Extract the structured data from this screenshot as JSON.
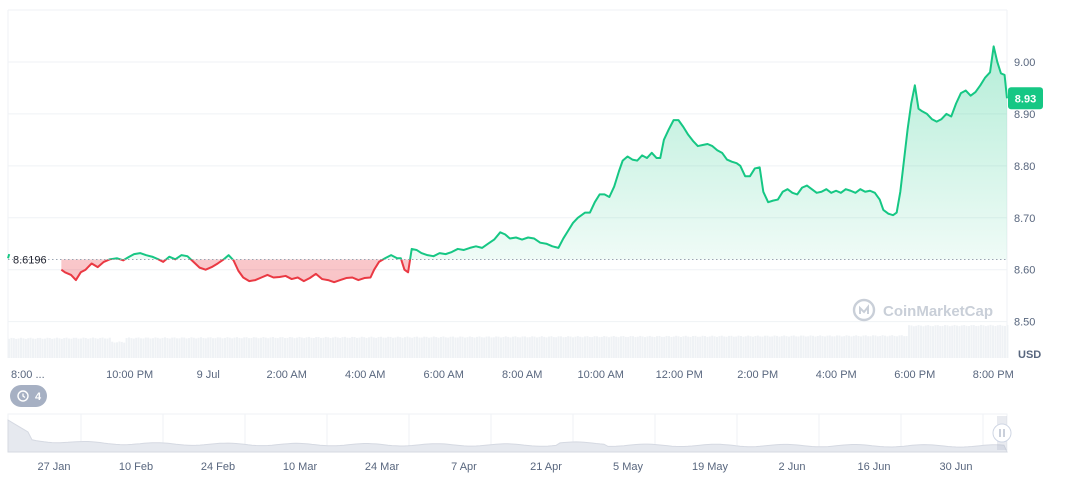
{
  "chart_data": {
    "type": "line",
    "currency": "USD",
    "baseline": 8.6196,
    "current_price_label": "8.93",
    "ylim": [
      8.43,
      9.1
    ],
    "y_ticks": [
      8.5,
      8.6,
      8.7,
      8.8,
      8.9,
      9.0
    ],
    "y_tick_labels": [
      "8.50",
      "8.60",
      "8.70",
      "8.80",
      "8.90",
      "9.00"
    ],
    "x_tick_labels": [
      "8:00 ...",
      "10:00 PM",
      "9 Jul",
      "2:00 AM",
      "4:00 AM",
      "6:00 AM",
      "8:00 AM",
      "10:00 AM",
      "12:00 PM",
      "2:00 PM",
      "4:00 PM",
      "6:00 PM",
      "8:00 PM"
    ],
    "x_hours": [
      0,
      2,
      4,
      6,
      8,
      10,
      12,
      14,
      16,
      18,
      20,
      22,
      24
    ],
    "grid": true,
    "colors": {
      "up": "#16c784",
      "down": "#ea3943",
      "grid": "#eff2f5",
      "text": "#58667e",
      "volume": "#eff2f5"
    },
    "series": [
      {
        "values": [
          [
            -1.1,
            8.622
          ],
          [
            -1.05,
            8.63
          ],
          [
            1.1,
            8.6
          ],
          [
            1.25,
            8.595
          ],
          [
            1.5,
            8.59
          ],
          [
            1.7,
            8.58
          ],
          [
            1.9,
            8.595
          ],
          [
            2.1,
            8.6
          ],
          [
            2.35,
            8.612
          ],
          [
            2.6,
            8.605
          ],
          [
            2.85,
            8.615
          ],
          [
            3.1,
            8.62
          ],
          [
            3.4,
            8.622
          ],
          [
            3.65,
            8.618
          ],
          [
            3.9,
            8.625
          ],
          [
            4.1,
            8.63
          ],
          [
            4.35,
            8.632
          ],
          [
            4.6,
            8.628
          ],
          [
            4.85,
            8.625
          ],
          [
            5.1,
            8.62
          ],
          [
            5.3,
            8.615
          ],
          [
            5.55,
            8.625
          ],
          [
            5.8,
            8.62
          ],
          [
            6.05,
            8.628
          ],
          [
            6.3,
            8.626
          ],
          [
            6.55,
            8.615
          ],
          [
            6.8,
            8.604
          ],
          [
            7.05,
            8.6
          ],
          [
            7.3,
            8.605
          ],
          [
            7.55,
            8.612
          ],
          [
            7.8,
            8.62
          ],
          [
            8.0,
            8.628
          ],
          [
            8.2,
            8.618
          ],
          [
            8.4,
            8.598
          ],
          [
            8.6,
            8.585
          ],
          [
            8.85,
            8.578
          ],
          [
            9.1,
            8.58
          ],
          [
            9.35,
            8.585
          ],
          [
            9.6,
            8.59
          ],
          [
            9.85,
            8.585
          ],
          [
            10.1,
            8.586
          ],
          [
            10.35,
            8.588
          ],
          [
            10.6,
            8.582
          ],
          [
            10.85,
            8.585
          ],
          [
            11.1,
            8.578
          ],
          [
            11.35,
            8.584
          ],
          [
            11.6,
            8.592
          ],
          [
            11.85,
            8.582
          ],
          [
            12.1,
            8.58
          ],
          [
            12.35,
            8.576
          ],
          [
            12.6,
            8.58
          ],
          [
            12.85,
            8.584
          ],
          [
            13.1,
            8.585
          ],
          [
            13.35,
            8.58
          ],
          [
            13.6,
            8.584
          ],
          [
            13.85,
            8.585
          ],
          [
            14.0,
            8.6
          ],
          [
            14.2,
            8.615
          ],
          [
            14.45,
            8.622
          ],
          [
            14.7,
            8.628
          ],
          [
            14.95,
            8.622
          ],
          [
            15.1,
            8.622
          ],
          [
            15.25,
            8.6
          ],
          [
            15.4,
            8.595
          ],
          [
            15.55,
            8.64
          ],
          [
            15.75,
            8.638
          ],
          [
            15.95,
            8.632
          ],
          [
            16.2,
            8.628
          ],
          [
            16.45,
            8.626
          ],
          [
            16.7,
            8.632
          ],
          [
            16.95,
            8.63
          ],
          [
            17.2,
            8.634
          ],
          [
            17.45,
            8.64
          ],
          [
            17.7,
            8.638
          ],
          [
            17.95,
            8.642
          ],
          [
            18.2,
            8.645
          ],
          [
            18.45,
            8.642
          ],
          [
            18.7,
            8.65
          ],
          [
            18.95,
            8.658
          ],
          [
            19.2,
            8.672
          ],
          [
            19.4,
            8.668
          ],
          [
            19.6,
            8.66
          ],
          [
            19.85,
            8.662
          ],
          [
            20.1,
            8.658
          ],
          [
            20.35,
            8.662
          ],
          [
            20.6,
            8.66
          ],
          [
            20.85,
            8.652
          ],
          [
            21.1,
            8.65
          ],
          [
            21.35,
            8.645
          ],
          [
            21.6,
            8.642
          ],
          [
            21.8,
            8.66
          ],
          [
            22.0,
            8.675
          ],
          [
            22.2,
            8.69
          ],
          [
            22.4,
            8.7
          ],
          [
            22.55,
            8.705
          ],
          [
            22.7,
            8.71
          ],
          [
            22.9,
            8.71
          ],
          [
            23.1,
            8.73
          ],
          [
            23.3,
            8.745
          ],
          [
            23.5,
            8.745
          ],
          [
            23.7,
            8.74
          ],
          [
            23.9,
            8.76
          ],
          [
            24.1,
            8.79
          ],
          [
            24.25,
            8.81
          ],
          [
            24.45,
            8.818
          ],
          [
            24.65,
            8.812
          ],
          [
            24.85,
            8.81
          ],
          [
            25.05,
            8.82
          ],
          [
            25.25,
            8.815
          ],
          [
            25.45,
            8.825
          ],
          [
            25.65,
            8.815
          ],
          [
            25.8,
            8.815
          ],
          [
            25.95,
            8.85
          ],
          [
            26.15,
            8.87
          ],
          [
            26.35,
            8.888
          ],
          [
            26.55,
            8.888
          ],
          [
            26.75,
            8.875
          ],
          [
            26.95,
            8.86
          ],
          [
            27.15,
            8.848
          ],
          [
            27.35,
            8.838
          ],
          [
            27.55,
            8.84
          ],
          [
            27.75,
            8.842
          ],
          [
            27.95,
            8.838
          ],
          [
            28.15,
            8.83
          ],
          [
            28.35,
            8.825
          ],
          [
            28.55,
            8.812
          ],
          [
            28.75,
            8.808
          ],
          [
            28.95,
            8.805
          ],
          [
            29.1,
            8.8
          ],
          [
            29.3,
            8.78
          ],
          [
            29.5,
            8.78
          ],
          [
            29.7,
            8.795
          ],
          [
            29.9,
            8.797
          ],
          [
            30.05,
            8.75
          ],
          [
            30.25,
            8.73
          ],
          [
            30.45,
            8.733
          ],
          [
            30.65,
            8.735
          ],
          [
            30.85,
            8.75
          ],
          [
            31.05,
            8.755
          ],
          [
            31.25,
            8.748
          ],
          [
            31.45,
            8.745
          ],
          [
            31.65,
            8.758
          ],
          [
            31.85,
            8.762
          ],
          [
            32.05,
            8.755
          ],
          [
            32.25,
            8.748
          ],
          [
            32.45,
            8.75
          ],
          [
            32.65,
            8.755
          ],
          [
            32.85,
            8.748
          ],
          [
            33.05,
            8.752
          ],
          [
            33.25,
            8.748
          ],
          [
            33.45,
            8.755
          ],
          [
            33.65,
            8.752
          ],
          [
            33.85,
            8.748
          ],
          [
            34.05,
            8.755
          ],
          [
            34.25,
            8.75
          ],
          [
            34.45,
            8.752
          ],
          [
            34.65,
            8.748
          ],
          [
            34.85,
            8.735
          ],
          [
            35.0,
            8.715
          ],
          [
            35.2,
            8.708
          ],
          [
            35.4,
            8.705
          ],
          [
            35.55,
            8.71
          ],
          [
            35.7,
            8.75
          ],
          [
            35.85,
            8.81
          ],
          [
            36.0,
            8.87
          ],
          [
            36.15,
            8.92
          ],
          [
            36.3,
            8.955
          ],
          [
            36.45,
            8.91
          ],
          [
            36.6,
            8.905
          ],
          [
            36.8,
            8.9
          ],
          [
            37.0,
            8.89
          ],
          [
            37.2,
            8.885
          ],
          [
            37.4,
            8.89
          ],
          [
            37.6,
            8.9
          ],
          [
            37.8,
            8.895
          ],
          [
            38.0,
            8.92
          ],
          [
            38.2,
            8.94
          ],
          [
            38.4,
            8.945
          ],
          [
            38.6,
            8.935
          ],
          [
            38.8,
            8.942
          ],
          [
            39.0,
            8.955
          ],
          [
            39.2,
            8.97
          ],
          [
            39.4,
            8.98
          ],
          [
            39.55,
            9.03
          ],
          [
            39.7,
            9.0
          ],
          [
            39.85,
            8.978
          ],
          [
            40.0,
            8.975
          ],
          [
            40.1,
            8.93
          ]
        ]
      }
    ],
    "navigator": {
      "x_tick_labels": [
        "27 Jan",
        "10 Feb",
        "24 Feb",
        "10 Mar",
        "24 Mar",
        "7 Apr",
        "21 Apr",
        "5 May",
        "19 May",
        "2 Jun",
        "16 Jun",
        "30 Jun"
      ]
    }
  },
  "ui": {
    "watermark": "CoinMarketCap",
    "y_unit_label": "USD",
    "history_badge_count": "4",
    "history_icon": "history-clock-icon",
    "navigator_handle_icon": "drag-handle-icon"
  }
}
